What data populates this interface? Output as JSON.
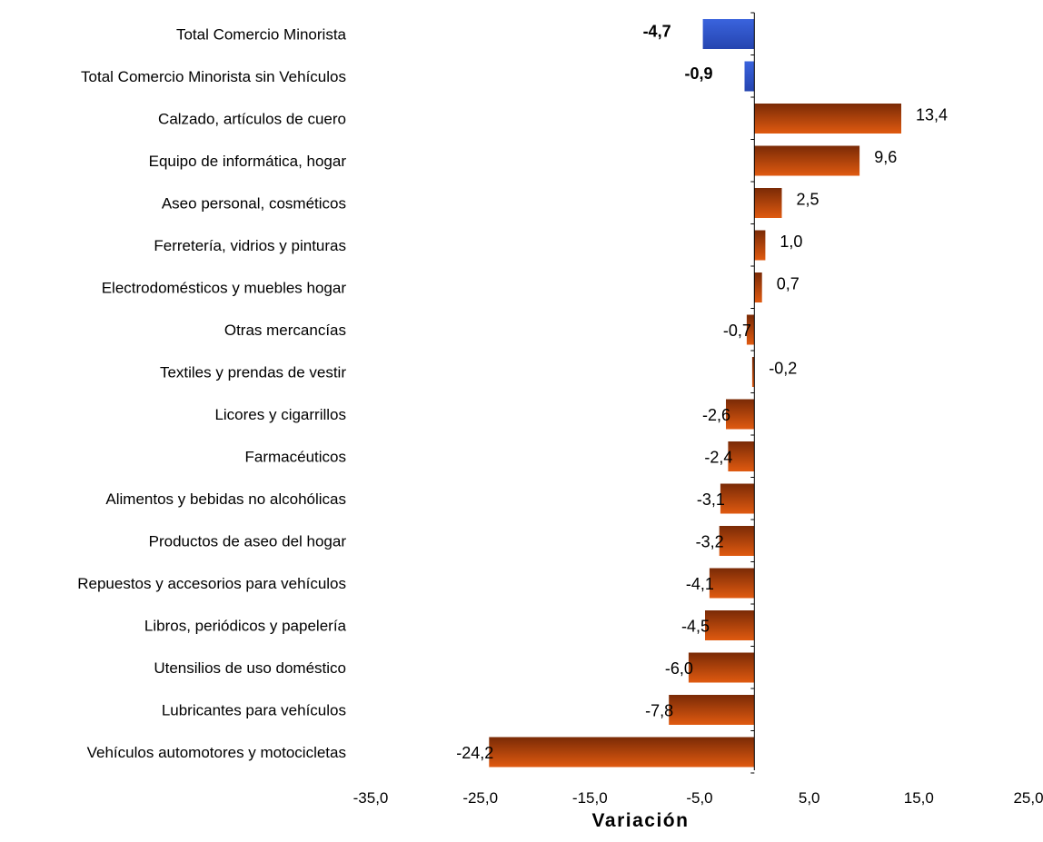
{
  "chart_data": {
    "type": "bar",
    "orientation": "horizontal",
    "xlabel": "Variación",
    "ylabel": "",
    "xlim": [
      -35,
      25
    ],
    "xticks": [
      -35,
      -25,
      -15,
      -5,
      5,
      15,
      25
    ],
    "xtick_labels": [
      "-35,0",
      "-25,0",
      "-15,0",
      "-5,0",
      "5,0",
      "15,0",
      "25,0"
    ],
    "grid": false,
    "legend": "none",
    "categories": [
      "Total Comercio Minorista",
      "Total Comercio Minorista sin  Vehículos",
      "Calzado, artículos de cuero",
      "Equipo de informática, hogar",
      "Aseo personal, cosméticos",
      "Ferretería, vidrios y pinturas",
      "Electrodomésticos y muebles hogar",
      "Otras mercancías",
      "Textiles y prendas de vestir",
      "Licores y cigarrillos",
      "Farmacéuticos",
      "Alimentos  y bebidas no alcohólicas",
      "Productos de aseo del  hogar",
      "Repuestos y accesorios para vehículos",
      "Libros, periódicos y papelería",
      "Utensilios de uso doméstico",
      "Lubricantes para vehículos",
      "Vehículos automotores y motocicletas"
    ],
    "values": [
      -4.7,
      -0.9,
      13.4,
      9.6,
      2.5,
      1.0,
      0.7,
      -0.7,
      -0.2,
      -2.6,
      -2.4,
      -3.1,
      -3.2,
      -4.1,
      -4.5,
      -6.0,
      -7.8,
      -24.2
    ],
    "value_labels": [
      "-4,7",
      "-0,9",
      "13,4",
      "9,6",
      "2,5",
      "1,0",
      "0,7",
      "-0,7",
      "-0,2",
      "-2,6",
      "-2,4",
      "-3,1",
      "-3,2",
      "-4,1",
      "-4,5",
      "-6,0",
      "-7,8",
      "-24,2"
    ],
    "total_count": 2,
    "colors": {
      "total": "#3a63dd",
      "total_dark": "#2545b0",
      "sector": "#e05a10",
      "sector_dark": "#7a2a06"
    }
  }
}
